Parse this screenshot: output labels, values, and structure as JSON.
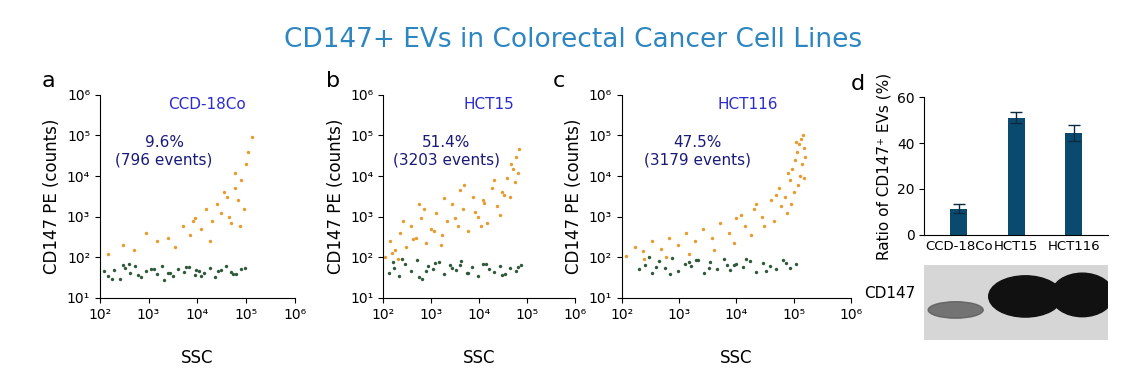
{
  "title": "CD147+ EVs in Colorectal Cancer Cell Lines",
  "chart_data": [
    {
      "type": "scatter",
      "panel_label": "a",
      "title": "CCD-18Co",
      "annotations": [
        "9.6%",
        "(796 events)"
      ],
      "x_label": "SSC",
      "y_label": "CD147 PE (counts)",
      "log": true,
      "xlim": [
        100,
        1000000
      ],
      "ylim": [
        10,
        1000000
      ],
      "xticks": [
        {
          "value": 100,
          "label": "10²"
        },
        {
          "value": 1000,
          "label": "10³"
        },
        {
          "value": 10000,
          "label": "10⁴"
        },
        {
          "value": 100000,
          "label": "10⁵"
        },
        {
          "value": 1000000,
          "label": "10⁶"
        }
      ],
      "yticks": [
        {
          "value": 10,
          "label": "10¹"
        },
        {
          "value": 100,
          "label": "10²"
        },
        {
          "value": 1000,
          "label": "10³"
        },
        {
          "value": 10000,
          "label": "10⁴"
        },
        {
          "value": 100000,
          "label": "10⁵"
        },
        {
          "value": 1000000,
          "label": "10⁶"
        }
      ],
      "series": [
        {
          "color": "#2f5a3a",
          "x": [
            150,
            200,
            260,
            330,
            420,
            540,
            700,
            900,
            1150,
            1500,
            1900,
            2500,
            3200,
            4100,
            5300,
            6800,
            8800,
            11000,
            14000,
            18000,
            23000,
            30000,
            38000,
            49000,
            63000,
            80000,
            120,
            180,
            300,
            600,
            1300,
            2800,
            6000,
            12000,
            26000,
            55000,
            95000,
            400,
            2100,
            9500
          ],
          "values": [
            35,
            48,
            30,
            55,
            40,
            62,
            33,
            45,
            52,
            38,
            60,
            42,
            35,
            50,
            44,
            58,
            37,
            47,
            40,
            55,
            32,
            48,
            60,
            43,
            38,
            52,
            45,
            30,
            65,
            36,
            50,
            41,
            57,
            34,
            46,
            39,
            53,
            68,
            28,
            49
          ]
        },
        {
          "color": "#e89a2c",
          "x": [
            150,
            300,
            500,
            900,
            1500,
            2500,
            3500,
            5000,
            7000,
            9000,
            12000,
            15000,
            20000,
            25000,
            30000,
            40000,
            50000,
            60000,
            70000,
            80000,
            90000,
            100000,
            110000,
            130000,
            45000,
            35000,
            18000,
            8000,
            60000,
            75000
          ],
          "values": [
            120,
            200,
            150,
            400,
            250,
            300,
            180,
            600,
            350,
            900,
            500,
            1500,
            800,
            2000,
            1200,
            3000,
            700,
            5000,
            2500,
            8000,
            1500,
            20000,
            40000,
            90000,
            1000,
            4000,
            250,
            800,
            12000,
            600
          ]
        }
      ]
    },
    {
      "type": "scatter",
      "panel_label": "b",
      "title": "HCT15",
      "annotations": [
        "51.4%",
        "(3203 events)"
      ],
      "x_label": "SSC",
      "y_label": "CD147 PE (counts)",
      "log": true,
      "xlim": [
        100,
        1000000
      ],
      "ylim": [
        10,
        1000000
      ],
      "xticks": [
        {
          "value": 100,
          "label": "10²"
        },
        {
          "value": 1000,
          "label": "10³"
        },
        {
          "value": 10000,
          "label": "10⁴"
        },
        {
          "value": 100000,
          "label": "10⁵"
        },
        {
          "value": 1000000,
          "label": "10⁶"
        }
      ],
      "yticks": [
        {
          "value": 10,
          "label": "10¹"
        },
        {
          "value": 100,
          "label": "10²"
        },
        {
          "value": 1000,
          "label": "10³"
        },
        {
          "value": 10000,
          "label": "10⁴"
        },
        {
          "value": 100000,
          "label": "10⁵"
        },
        {
          "value": 1000000,
          "label": "10⁶"
        }
      ],
      "series": [
        {
          "color": "#2f5a3a",
          "x": [
            130,
            170,
            220,
            290,
            380,
            500,
            650,
            850,
            1100,
            1450,
            1900,
            2500,
            3300,
            4300,
            5600,
            7300,
            9500,
            12000,
            16000,
            21000,
            27000,
            35000,
            45000,
            60000,
            75000,
            250,
            550,
            1200,
            2700,
            6000,
            14000,
            30000,
            65000,
            160,
            800,
            4000
          ],
          "values": [
            40,
            55,
            35,
            70,
            45,
            85,
            30,
            60,
            50,
            75,
            38,
            65,
            48,
            80,
            42,
            58,
            35,
            70,
            52,
            44,
            62,
            38,
            55,
            47,
            66,
            90,
            33,
            72,
            54,
            41,
            68,
            36,
            57,
            78,
            46,
            63
          ]
        },
        {
          "color": "#e89a2c",
          "x": [
            110,
            140,
            180,
            230,
            300,
            380,
            490,
            630,
            800,
            1000,
            1300,
            1700,
            2200,
            2800,
            3600,
            4600,
            5900,
            7500,
            9600,
            12000,
            15000,
            19000,
            24000,
            30000,
            38000,
            45000,
            52000,
            60000,
            68000,
            150,
            260,
            420,
            700,
            1150,
            1900,
            3100,
            5000,
            8200,
            13000,
            21000,
            34000,
            48000,
            58000,
            65000,
            200,
            550,
            1600,
            4000,
            11000,
            28000
          ],
          "values": [
            100,
            250,
            150,
            400,
            180,
            600,
            300,
            900,
            220,
            500,
            1200,
            350,
            800,
            2000,
            600,
            1500,
            450,
            3000,
            1000,
            2500,
            700,
            5000,
            1800,
            4000,
            9000,
            3000,
            15000,
            30000,
            45000,
            130,
            800,
            280,
            1500,
            450,
            2800,
            900,
            6000,
            1300,
            2200,
            8000,
            3500,
            20000,
            7000,
            12000,
            90,
            2000,
            200,
            4500,
            600,
            1100
          ]
        }
      ]
    },
    {
      "type": "scatter",
      "panel_label": "c",
      "title": "HCT116",
      "annotations": [
        "47.5%",
        "(3179 events)"
      ],
      "x_label": "SSC",
      "y_label": "CD147 PE (counts)",
      "log": true,
      "xlim": [
        100,
        1000000
      ],
      "ylim": [
        10,
        1000000
      ],
      "xticks": [
        {
          "value": 100,
          "label": "10²"
        },
        {
          "value": 1000,
          "label": "10³"
        },
        {
          "value": 10000,
          "label": "10⁴"
        },
        {
          "value": 100000,
          "label": "10⁵"
        },
        {
          "value": 1000000,
          "label": "10⁶"
        }
      ],
      "yticks": [
        {
          "value": 10,
          "label": "10¹"
        },
        {
          "value": 100,
          "label": "10²"
        },
        {
          "value": 1000,
          "label": "10³"
        },
        {
          "value": 10000,
          "label": "10⁴"
        },
        {
          "value": 100000,
          "label": "10⁵"
        },
        {
          "value": 1000000,
          "label": "10⁶"
        }
      ],
      "series": [
        {
          "color": "#2f5a3a",
          "x": [
            200,
            260,
            340,
            440,
            570,
            740,
            960,
            1250,
            1600,
            2100,
            2700,
            3500,
            4600,
            6000,
            7800,
            10000,
            13000,
            17000,
            22000,
            29000,
            38000,
            50000,
            65000,
            85000,
            110000,
            300,
            700,
            1500,
            3300,
            7000,
            15000,
            33000,
            72000,
            400,
            2000,
            9000
          ],
          "values": [
            50,
            65,
            40,
            80,
            55,
            95,
            45,
            70,
            60,
            85,
            42,
            75,
            52,
            90,
            48,
            68,
            58,
            82,
            44,
            72,
            62,
            50,
            88,
            55,
            70,
            100,
            38,
            78,
            53,
            66,
            92,
            47,
            74,
            58,
            86,
            63
          ]
        },
        {
          "color": "#e89a2c",
          "x": [
            120,
            170,
            240,
            340,
            480,
            680,
            950,
            1300,
            1900,
            2600,
            3700,
            5200,
            7300,
            10000,
            14000,
            20000,
            28000,
            40000,
            55000,
            70000,
            85000,
            95000,
            105000,
            115000,
            125000,
            135000,
            145000,
            150000,
            160000,
            100000,
            90000,
            80000,
            120000,
            140000,
            60000,
            45000,
            30000,
            18000,
            9000,
            4000,
            1500,
            600,
            250,
            130000,
            110000,
            150000,
            75000,
            50000,
            22000,
            12000
          ],
          "values": [
            110,
            180,
            140,
            250,
            160,
            300,
            200,
            400,
            250,
            500,
            300,
            700,
            400,
            900,
            600,
            1500,
            1000,
            2500,
            5000,
            3000,
            8000,
            15000,
            25000,
            40000,
            60000,
            80000,
            100000,
            50000,
            30000,
            4000,
            2000,
            12000,
            6000,
            20000,
            1800,
            800,
            600,
            350,
            220,
            150,
            120,
            100,
            90,
            10000,
            70000,
            9000,
            1200,
            3500,
            2000,
            1100
          ]
        }
      ]
    },
    {
      "type": "bar",
      "panel_label": "d",
      "y_label": "Ratio of CD147⁺ EVs (%)",
      "categories": [
        "CCD-18Co",
        "HCT15",
        "HCT116"
      ],
      "values": [
        11.5,
        51,
        44.5
      ],
      "errors": [
        2,
        2.5,
        3.5
      ],
      "color": "#0b4a6f",
      "ylim": [
        0,
        60
      ],
      "yticks": [
        0,
        20,
        40,
        60
      ]
    }
  ],
  "blot": {
    "label": "CD147"
  }
}
